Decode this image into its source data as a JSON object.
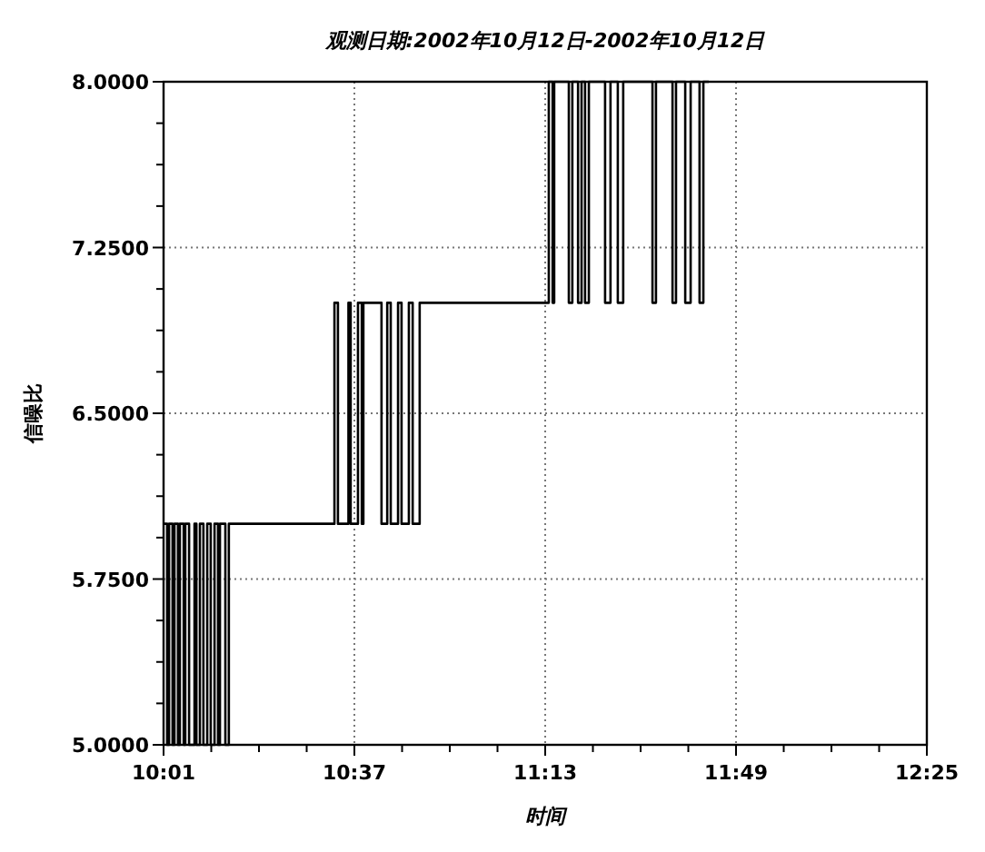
{
  "chart_data": {
    "type": "step",
    "title": "观测日期:2002年10月12日-2002年10月12日",
    "xlabel": "时间",
    "ylabel": "信噪比",
    "grid": true,
    "line_style": "solid",
    "xlim": [
      10.0167,
      12.4167
    ],
    "xticks": [
      {
        "value": 10.0167,
        "label": "10:01"
      },
      {
        "value": 10.1667,
        "label": null
      },
      {
        "value": 10.3167,
        "label": null
      },
      {
        "value": 10.4667,
        "label": null
      },
      {
        "value": 10.6167,
        "label": "10:37"
      },
      {
        "value": 10.7667,
        "label": null
      },
      {
        "value": 10.9167,
        "label": null
      },
      {
        "value": 11.0667,
        "label": null
      },
      {
        "value": 11.2167,
        "label": "11:13"
      },
      {
        "value": 11.3667,
        "label": null
      },
      {
        "value": 11.5167,
        "label": null
      },
      {
        "value": 11.6667,
        "label": null
      },
      {
        "value": 11.8167,
        "label": "11:49"
      },
      {
        "value": 11.9667,
        "label": null
      },
      {
        "value": 12.1167,
        "label": null
      },
      {
        "value": 12.2667,
        "label": null
      },
      {
        "value": 12.4167,
        "label": "12:25"
      }
    ],
    "ylim": [
      5,
      8
    ],
    "yticks": [
      {
        "value": 5,
        "label": "5.0000"
      },
      {
        "value": 5.1875,
        "label": null
      },
      {
        "value": 5.375,
        "label": null
      },
      {
        "value": 5.5625,
        "label": null
      },
      {
        "value": 5.75,
        "label": "5.7500"
      },
      {
        "value": 5.9375,
        "label": null
      },
      {
        "value": 6.125,
        "label": null
      },
      {
        "value": 6.3125,
        "label": null
      },
      {
        "value": 6.5,
        "label": "6.5000"
      },
      {
        "value": 6.6875,
        "label": null
      },
      {
        "value": 6.875,
        "label": null
      },
      {
        "value": 7.0625,
        "label": null
      },
      {
        "value": 7.25,
        "label": "7.2500"
      },
      {
        "value": 7.4375,
        "label": null
      },
      {
        "value": 7.625,
        "label": null
      },
      {
        "value": 7.8125,
        "label": null
      },
      {
        "value": 8,
        "label": "8.0000"
      }
    ],
    "series": [
      {
        "color": "#000000",
        "x": [
          10.017,
          10.028,
          10.034,
          10.045,
          10.051,
          10.062,
          10.068,
          10.08,
          10.085,
          10.097,
          10.114,
          10.12,
          10.131,
          10.142,
          10.154,
          10.165,
          10.177,
          10.188,
          10.194,
          10.211,
          10.222,
          10.554,
          10.565,
          10.598,
          10.605,
          10.628,
          10.64,
          10.645,
          10.702,
          10.72,
          10.731,
          10.754,
          10.765,
          10.788,
          10.8,
          10.822,
          11.228,
          11.24,
          11.245,
          11.291,
          11.302,
          11.32,
          11.331,
          11.342,
          11.354,
          11.405,
          11.422,
          11.445,
          11.462,
          11.554,
          11.565,
          11.617,
          11.628,
          11.657,
          11.674,
          11.702,
          11.714,
          11.731
        ],
        "values": [
          6,
          5,
          6,
          5,
          6,
          5,
          6,
          5,
          6,
          5,
          6,
          5,
          6,
          5,
          6,
          5,
          6,
          5,
          6,
          5,
          6,
          7,
          6,
          7,
          6,
          7,
          6,
          7,
          6,
          7,
          6,
          7,
          6,
          7,
          6,
          7,
          8,
          7,
          8,
          7,
          8,
          7,
          8,
          7,
          8,
          7,
          8,
          7,
          8,
          7,
          8,
          7,
          8,
          7,
          8,
          7,
          8,
          8
        ]
      }
    ]
  }
}
